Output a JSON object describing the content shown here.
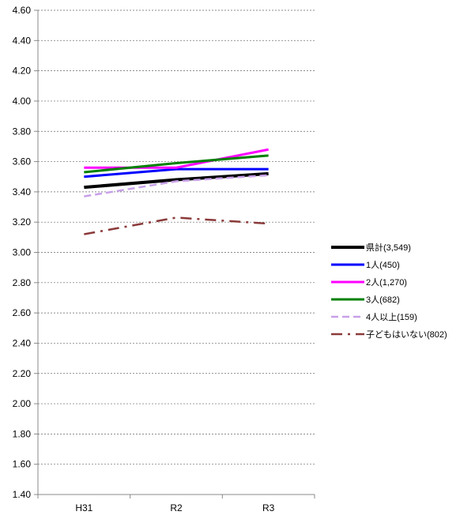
{
  "chart_data": {
    "type": "line",
    "categories": [
      "H31",
      "R2",
      "R3"
    ],
    "ylim": [
      1.4,
      4.6
    ],
    "ytick_step": 0.2,
    "ytick_labels": [
      "1.40",
      "1.60",
      "1.80",
      "2.00",
      "2.20",
      "2.40",
      "2.60",
      "2.80",
      "3.00",
      "3.20",
      "3.40",
      "3.60",
      "3.80",
      "4.00",
      "4.20",
      "4.40",
      "4.60"
    ],
    "grid": true,
    "legend_position": "right",
    "series": [
      {
        "name": "県計(3,549)",
        "values": [
          3.43,
          3.48,
          3.52
        ],
        "color": "#000000",
        "dash": "solid"
      },
      {
        "name": "1人(450)",
        "values": [
          3.5,
          3.55,
          3.55
        ],
        "color": "#0000ff",
        "dash": "solid"
      },
      {
        "name": "2人(1,270)",
        "values": [
          3.56,
          3.56,
          3.68
        ],
        "color": "#ff00ff",
        "dash": "solid"
      },
      {
        "name": "3人(682)",
        "values": [
          3.53,
          3.59,
          3.64
        ],
        "color": "#008000",
        "dash": "solid"
      },
      {
        "name": "4人以上(159)",
        "values": [
          3.37,
          3.47,
          3.51
        ],
        "color": "#c8a0e8",
        "dash": "dashed"
      },
      {
        "name": "子どもはいない(802)",
        "values": [
          3.12,
          3.23,
          3.19
        ],
        "color": "#8b3a3a",
        "dash": "dashdot"
      }
    ]
  }
}
